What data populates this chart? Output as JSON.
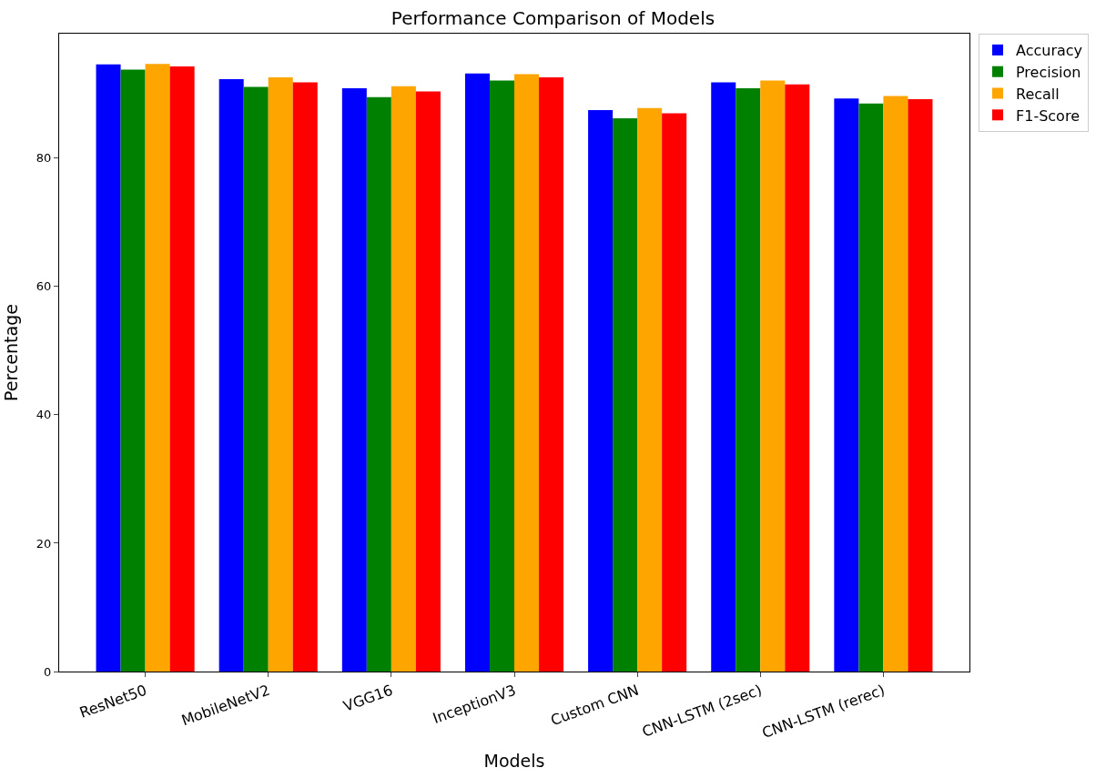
{
  "chart_data": {
    "type": "bar",
    "title": "Performance Comparison of Models",
    "xlabel": "Models",
    "ylabel": "Percentage",
    "categories": [
      "ResNet50",
      "MobileNetV2",
      "VGG16",
      "InceptionV3",
      "Custom CNN",
      "CNN-LSTM (2sec)",
      "CNN-LSTM (rerec)"
    ],
    "series": [
      {
        "name": "Accuracy",
        "color": "#0000ff",
        "values": [
          94.6,
          92.3,
          90.9,
          93.2,
          87.5,
          91.8,
          89.3
        ]
      },
      {
        "name": "Precision",
        "color": "#008000",
        "values": [
          93.8,
          91.1,
          89.5,
          92.1,
          86.2,
          90.9,
          88.5
        ]
      },
      {
        "name": "Recall",
        "color": "#ffa500",
        "values": [
          94.7,
          92.6,
          91.2,
          93.1,
          87.8,
          92.1,
          89.7
        ]
      },
      {
        "name": "F1-Score",
        "color": "#ff0000",
        "values": [
          94.3,
          91.8,
          90.4,
          92.6,
          87.0,
          91.5,
          89.2
        ]
      }
    ],
    "ylim": [
      0,
      99.4
    ],
    "yticks": [
      0,
      20,
      40,
      60,
      80
    ],
    "grid": false,
    "legend": "top right"
  }
}
